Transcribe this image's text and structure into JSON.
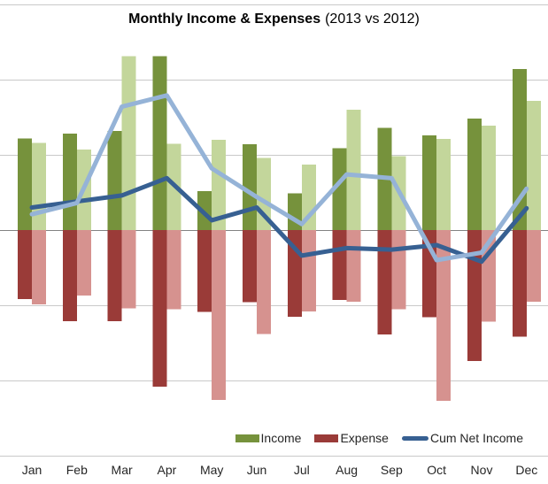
{
  "chart": {
    "title": "Monthly Income & Expenses",
    "subtitle": "(2013 vs 2012)"
  },
  "chart_data": {
    "type": "bar+line combo",
    "title": "Monthly Income & Expenses",
    "subtitle": "(2013 vs 2012)",
    "categories": [
      "Jan",
      "Feb",
      "Mar",
      "Apr",
      "May",
      "Jun",
      "Jul",
      "Aug",
      "Sep",
      "Oct",
      "Nov",
      "Dec"
    ],
    "value_note": "y axis unlabeled; values estimated with one gridline = 5000 units",
    "ylim": [
      -15000,
      15000
    ],
    "gridline_step": 5000,
    "grid_on": true,
    "gridline_color": "#C9C9C9",
    "zero_line_color": "#828282",
    "series": [
      {
        "id": "income-2013",
        "name": "Income 2013",
        "type": "bar",
        "column": 0,
        "color": "#76923C",
        "values": [
          6100,
          6400,
          6600,
          11550,
          2600,
          5700,
          2450,
          5450,
          6800,
          6300,
          7400,
          10700
        ]
      },
      {
        "id": "income-2012",
        "name": "Income 2012",
        "type": "bar",
        "column": 1,
        "color": "#C3D69B",
        "values": [
          5800,
          5350,
          11550,
          5750,
          6000,
          4800,
          4350,
          8000,
          4900,
          6050,
          6950,
          8600
        ]
      },
      {
        "id": "expense-2013",
        "name": "Expense 2013",
        "type": "bar",
        "column": 0,
        "color": "#9A3B38",
        "values": [
          -4600,
          -6050,
          -6050,
          -10400,
          -5450,
          -4800,
          -5750,
          -4650,
          -6950,
          -5800,
          -8700,
          -7100
        ]
      },
      {
        "id": "expense-2012",
        "name": "Expense 2012",
        "type": "bar",
        "column": 1,
        "color": "#D6928F",
        "values": [
          -4950,
          -4350,
          -5200,
          -5250,
          -11300,
          -6900,
          -5400,
          -4750,
          -5250,
          -11350,
          -6100,
          -4750
        ]
      },
      {
        "id": "cum-net-income-2013",
        "name": "Cum Net Income 2013",
        "type": "line",
        "color": "#376092",
        "values": [
          1500,
          1900,
          2300,
          3450,
          650,
          1500,
          -1700,
          -1200,
          -1300,
          -1000,
          -2100,
          1450
        ]
      },
      {
        "id": "cum-net-income-2012",
        "name": "Cum Net Income 2012",
        "type": "line",
        "color": "#95B3D7",
        "values": [
          1050,
          1800,
          8200,
          8950,
          4100,
          2200,
          400,
          3700,
          3450,
          -2000,
          -1500,
          2750
        ]
      }
    ],
    "legend": {
      "position": "bottom-right",
      "entries": [
        {
          "label": "Income",
          "color": "#76923C",
          "shape": "rect"
        },
        {
          "label": "Expense",
          "color": "#9A3B38",
          "shape": "rect"
        },
        {
          "label": "Cum Net Income",
          "color": "#376092",
          "shape": "line"
        }
      ]
    }
  }
}
